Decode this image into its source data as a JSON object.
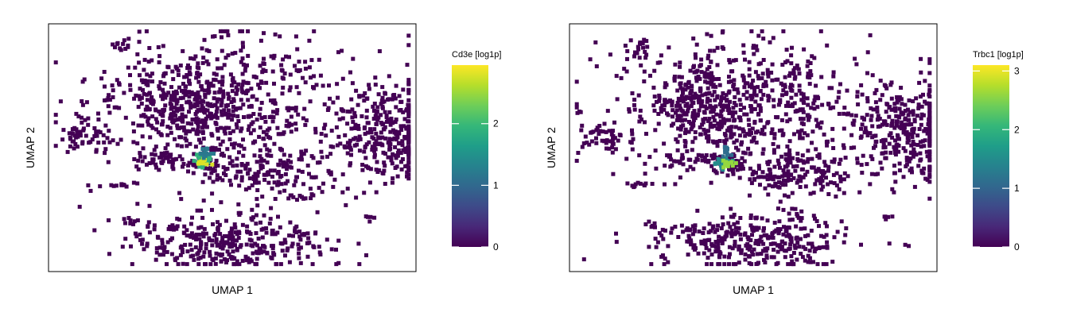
{
  "colors": {
    "background": "#ffffff",
    "frame": "#000000",
    "cell_base": "#440154",
    "viridis": [
      "#440154",
      "#482878",
      "#3e4a89",
      "#31688e",
      "#26828e",
      "#1f9e89",
      "#35b779",
      "#6ece58",
      "#b5de2b",
      "#fde725"
    ]
  },
  "chart_data": [
    {
      "type": "scatter",
      "embedding": "UMAP",
      "xlabel": "UMAP 1",
      "ylabel": "UMAP 2",
      "xticks": [],
      "yticks": [],
      "grid": false,
      "legend": {
        "title": "Cd3e [log1p]",
        "placement": "right",
        "range": [
          0,
          2.95
        ],
        "ticks": [
          0,
          1,
          2
        ],
        "tick_labels": [
          "0",
          "1",
          "2"
        ]
      },
      "clusters": [
        {
          "center": [
            0.2,
            0.09
          ],
          "spread": [
            0.012,
            0.02
          ],
          "n": 12,
          "value": 0
        },
        {
          "center": [
            0.46,
            0.32
          ],
          "spread": [
            0.18,
            0.13
          ],
          "n": 620,
          "value": 0
        },
        {
          "center": [
            0.38,
            0.35
          ],
          "spread": [
            0.07,
            0.07
          ],
          "n": 140,
          "value": 0
        },
        {
          "center": [
            0.92,
            0.44
          ],
          "spread": [
            0.07,
            0.1
          ],
          "n": 300,
          "value": 0
        },
        {
          "center": [
            0.09,
            0.46
          ],
          "spread": [
            0.035,
            0.03
          ],
          "n": 45,
          "value": 0
        },
        {
          "center": [
            0.32,
            0.55
          ],
          "spread": [
            0.04,
            0.02
          ],
          "n": 40,
          "value": 0
        },
        {
          "center": [
            0.44,
            0.57
          ],
          "spread": [
            0.025,
            0.03
          ],
          "n": 35,
          "value": 0
        },
        {
          "center": [
            0.62,
            0.6
          ],
          "spread": [
            0.09,
            0.05
          ],
          "n": 150,
          "value": 0
        },
        {
          "center": [
            0.19,
            0.65
          ],
          "spread": [
            0.035,
            0.006
          ],
          "n": 12,
          "value": 0
        },
        {
          "center": [
            0.22,
            0.81
          ],
          "spread": [
            0.01,
            0.01
          ],
          "n": 6,
          "value": 0
        },
        {
          "center": [
            0.33,
            0.83
          ],
          "spread": [
            0.01,
            0.01
          ],
          "n": 6,
          "value": 0
        },
        {
          "center": [
            0.87,
            0.78
          ],
          "spread": [
            0.01,
            0.006
          ],
          "n": 5,
          "value": 0
        },
        {
          "center": [
            0.5,
            0.88
          ],
          "spread": [
            0.14,
            0.06
          ],
          "n": 340,
          "value": 0
        },
        {
          "center": [
            0.42,
            0.55
          ],
          "spread": [
            0.014,
            0.018
          ],
          "n": 28,
          "value": 1.9
        },
        {
          "center": [
            0.425,
            0.56
          ],
          "spread": [
            0.008,
            0.008
          ],
          "n": 10,
          "value": 2.8
        },
        {
          "center": [
            0.43,
            0.52
          ],
          "spread": [
            0.01,
            0.015
          ],
          "n": 12,
          "value": 1.2
        }
      ]
    },
    {
      "type": "scatter",
      "embedding": "UMAP",
      "xlabel": "UMAP 1",
      "ylabel": "UMAP 2",
      "xticks": [],
      "yticks": [],
      "grid": false,
      "legend": {
        "title": "Trbc1 [log1p]",
        "placement": "right",
        "range": [
          0,
          3.1
        ],
        "ticks": [
          0,
          1,
          2,
          3
        ],
        "tick_labels": [
          "0",
          "1",
          "2",
          "3"
        ]
      },
      "clusters": [
        {
          "center": [
            0.2,
            0.09
          ],
          "spread": [
            0.012,
            0.02
          ],
          "n": 12,
          "value": 0
        },
        {
          "center": [
            0.46,
            0.32
          ],
          "spread": [
            0.18,
            0.13
          ],
          "n": 620,
          "value": 0
        },
        {
          "center": [
            0.38,
            0.35
          ],
          "spread": [
            0.07,
            0.07
          ],
          "n": 140,
          "value": 0
        },
        {
          "center": [
            0.92,
            0.44
          ],
          "spread": [
            0.07,
            0.1
          ],
          "n": 300,
          "value": 0
        },
        {
          "center": [
            0.09,
            0.46
          ],
          "spread": [
            0.035,
            0.03
          ],
          "n": 45,
          "value": 0
        },
        {
          "center": [
            0.32,
            0.55
          ],
          "spread": [
            0.04,
            0.02
          ],
          "n": 40,
          "value": 0
        },
        {
          "center": [
            0.44,
            0.57
          ],
          "spread": [
            0.025,
            0.03
          ],
          "n": 35,
          "value": 0
        },
        {
          "center": [
            0.62,
            0.6
          ],
          "spread": [
            0.09,
            0.05
          ],
          "n": 150,
          "value": 0
        },
        {
          "center": [
            0.19,
            0.65
          ],
          "spread": [
            0.035,
            0.006
          ],
          "n": 12,
          "value": 0
        },
        {
          "center": [
            0.22,
            0.81
          ],
          "spread": [
            0.01,
            0.01
          ],
          "n": 6,
          "value": 0
        },
        {
          "center": [
            0.33,
            0.83
          ],
          "spread": [
            0.01,
            0.01
          ],
          "n": 6,
          "value": 0
        },
        {
          "center": [
            0.87,
            0.78
          ],
          "spread": [
            0.01,
            0.006
          ],
          "n": 5,
          "value": 0
        },
        {
          "center": [
            0.5,
            0.88
          ],
          "spread": [
            0.14,
            0.06
          ],
          "n": 340,
          "value": 0
        },
        {
          "center": [
            0.42,
            0.56
          ],
          "spread": [
            0.015,
            0.015
          ],
          "n": 24,
          "value": 1.5
        },
        {
          "center": [
            0.425,
            0.565
          ],
          "spread": [
            0.01,
            0.008
          ],
          "n": 12,
          "value": 2.6
        },
        {
          "center": [
            0.43,
            0.52
          ],
          "spread": [
            0.006,
            0.02
          ],
          "n": 10,
          "value": 1.1
        }
      ]
    }
  ]
}
